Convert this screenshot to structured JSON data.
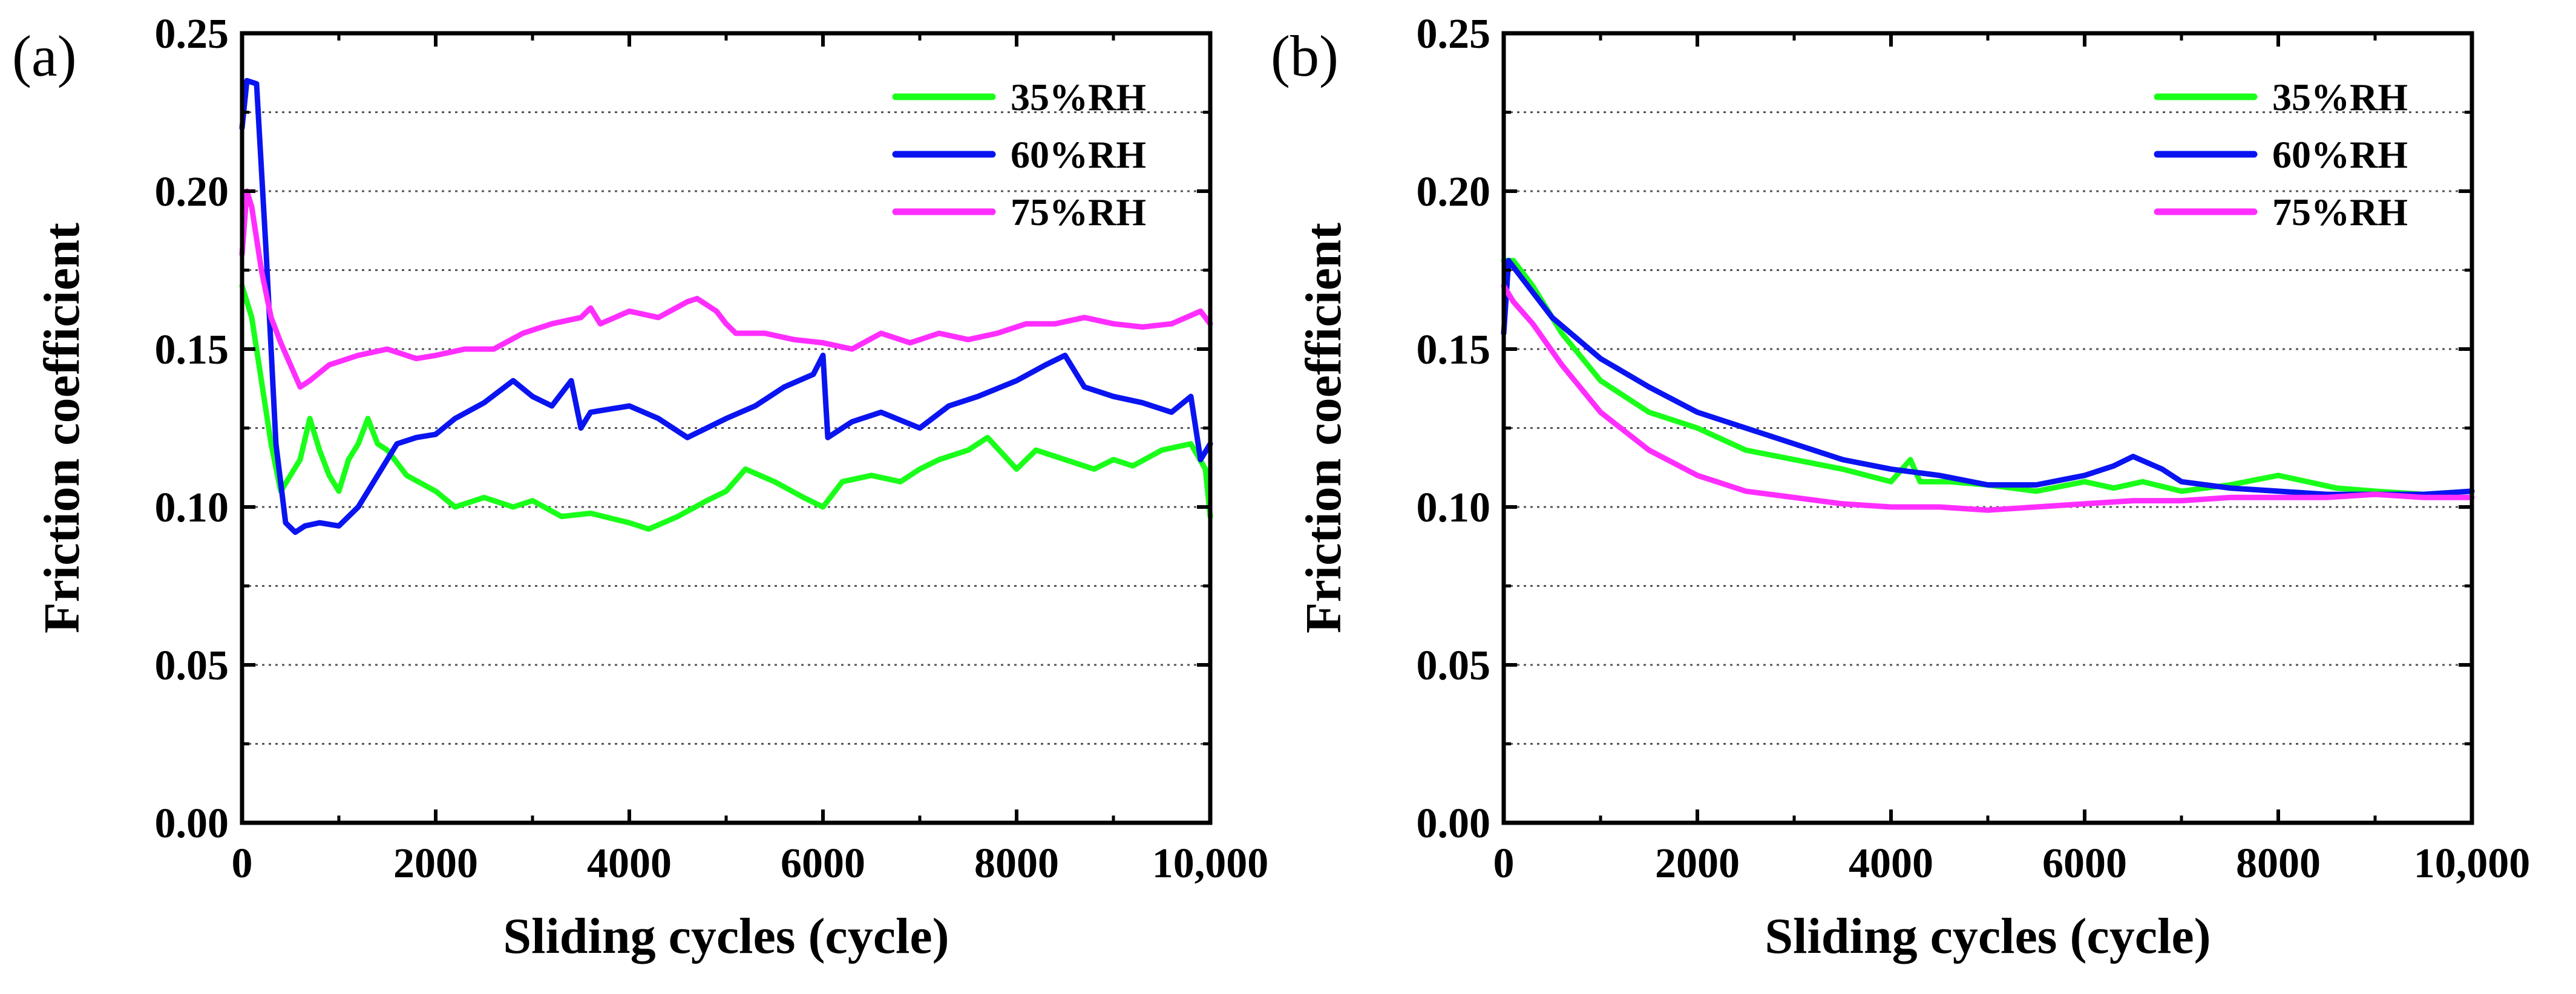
{
  "chart_data": [
    {
      "type": "line",
      "panel_label": "(a)",
      "xlabel": "Sliding cycles (cycle)",
      "ylabel": "Friction coefficient",
      "xlim": [
        0,
        10000
      ],
      "ylim": [
        0,
        0.25
      ],
      "xticks": [
        "0",
        "2000",
        "4000",
        "6000",
        "8000",
        "10,000"
      ],
      "xtick_values": [
        0,
        2000,
        4000,
        6000,
        8000,
        10000
      ],
      "yticks": [
        "0.00",
        "0.05",
        "0.10",
        "0.15",
        "0.20",
        "0.25"
      ],
      "ytick_values": [
        0,
        0.05,
        0.1,
        0.15,
        0.2,
        0.25
      ],
      "grid": "horizontal-dotted",
      "legend_position": "top-right",
      "series": [
        {
          "name": "35%RH",
          "color": "#1aff1a",
          "x": [
            0,
            100,
            200,
            300,
            400,
            500,
            600,
            700,
            800,
            900,
            1000,
            1100,
            1200,
            1300,
            1400,
            1500,
            1700,
            2000,
            2200,
            2500,
            2800,
            3000,
            3300,
            3600,
            4000,
            4200,
            4500,
            4800,
            5000,
            5200,
            5500,
            5800,
            6000,
            6200,
            6500,
            6800,
            7000,
            7200,
            7500,
            7700,
            8000,
            8200,
            8500,
            8800,
            9000,
            9200,
            9500,
            9800,
            9950,
            10000
          ],
          "y": [
            0.17,
            0.16,
            0.14,
            0.12,
            0.105,
            0.11,
            0.115,
            0.128,
            0.118,
            0.11,
            0.105,
            0.115,
            0.12,
            0.128,
            0.12,
            0.118,
            0.11,
            0.105,
            0.1,
            0.103,
            0.1,
            0.102,
            0.097,
            0.098,
            0.095,
            0.093,
            0.097,
            0.102,
            0.105,
            0.112,
            0.108,
            0.103,
            0.1,
            0.108,
            0.11,
            0.108,
            0.112,
            0.115,
            0.118,
            0.122,
            0.112,
            0.118,
            0.115,
            0.112,
            0.115,
            0.113,
            0.118,
            0.12,
            0.112,
            0.097
          ]
        },
        {
          "name": "60%RH",
          "color": "#0a14f0",
          "x": [
            0,
            50,
            150,
            250,
            350,
            450,
            550,
            650,
            800,
            1000,
            1200,
            1400,
            1600,
            1800,
            2000,
            2200,
            2500,
            2800,
            3000,
            3200,
            3400,
            3500,
            3600,
            4000,
            4300,
            4600,
            5000,
            5300,
            5600,
            5900,
            6000,
            6050,
            6300,
            6600,
            7000,
            7300,
            7600,
            8000,
            8300,
            8500,
            8700,
            9000,
            9300,
            9600,
            9800,
            9900,
            10000
          ],
          "y": [
            0.22,
            0.235,
            0.234,
            0.18,
            0.12,
            0.095,
            0.092,
            0.094,
            0.095,
            0.094,
            0.1,
            0.11,
            0.12,
            0.122,
            0.123,
            0.128,
            0.133,
            0.14,
            0.135,
            0.132,
            0.14,
            0.125,
            0.13,
            0.132,
            0.128,
            0.122,
            0.128,
            0.132,
            0.138,
            0.142,
            0.148,
            0.122,
            0.127,
            0.13,
            0.125,
            0.132,
            0.135,
            0.14,
            0.145,
            0.148,
            0.138,
            0.135,
            0.133,
            0.13,
            0.135,
            0.115,
            0.12
          ]
        },
        {
          "name": "75%RH",
          "color": "#ff2eff",
          "x": [
            0,
            50,
            100,
            200,
            300,
            400,
            500,
            600,
            700,
            900,
            1200,
            1500,
            1800,
            2000,
            2300,
            2600,
            2900,
            3200,
            3500,
            3600,
            3700,
            4000,
            4300,
            4600,
            4700,
            4900,
            5000,
            5100,
            5400,
            5700,
            6000,
            6300,
            6600,
            6900,
            7200,
            7500,
            7800,
            8100,
            8400,
            8700,
            9000,
            9300,
            9600,
            9900,
            10000
          ],
          "y": [
            0.18,
            0.2,
            0.195,
            0.175,
            0.16,
            0.152,
            0.145,
            0.138,
            0.14,
            0.145,
            0.148,
            0.15,
            0.147,
            0.148,
            0.15,
            0.15,
            0.155,
            0.158,
            0.16,
            0.163,
            0.158,
            0.162,
            0.16,
            0.165,
            0.166,
            0.162,
            0.158,
            0.155,
            0.155,
            0.153,
            0.152,
            0.15,
            0.155,
            0.152,
            0.155,
            0.153,
            0.155,
            0.158,
            0.158,
            0.16,
            0.158,
            0.157,
            0.158,
            0.162,
            0.158
          ]
        }
      ]
    },
    {
      "type": "line",
      "panel_label": "(b)",
      "xlabel": "Sliding cycles (cycle)",
      "ylabel": "Friction coefficient",
      "xlim": [
        0,
        10000
      ],
      "ylim": [
        0,
        0.25
      ],
      "xticks": [
        "0",
        "2000",
        "4000",
        "6000",
        "8000",
        "10,000"
      ],
      "xtick_values": [
        0,
        2000,
        4000,
        6000,
        8000,
        10000
      ],
      "yticks": [
        "0.00",
        "0.05",
        "0.10",
        "0.15",
        "0.20",
        "0.25"
      ],
      "ytick_values": [
        0,
        0.05,
        0.1,
        0.15,
        0.2,
        0.25
      ],
      "grid": "horizontal-dotted",
      "legend_position": "top-right",
      "series": [
        {
          "name": "35%RH",
          "color": "#1aff1a",
          "x": [
            0,
            100,
            300,
            600,
            1000,
            1500,
            2000,
            2500,
            3000,
            3500,
            4000,
            4200,
            4300,
            4600,
            5000,
            5500,
            6000,
            6300,
            6600,
            7000,
            7500,
            8000,
            8300,
            8600,
            9000,
            9500,
            10000
          ],
          "y": [
            0.178,
            0.178,
            0.17,
            0.155,
            0.14,
            0.13,
            0.125,
            0.118,
            0.115,
            0.112,
            0.108,
            0.115,
            0.108,
            0.108,
            0.107,
            0.105,
            0.108,
            0.106,
            0.108,
            0.105,
            0.107,
            0.11,
            0.108,
            0.106,
            0.105,
            0.104,
            0.105
          ]
        },
        {
          "name": "60%RH",
          "color": "#0a14f0",
          "x": [
            0,
            50,
            200,
            500,
            1000,
            1500,
            2000,
            2500,
            3000,
            3500,
            4000,
            4500,
            5000,
            5500,
            6000,
            6300,
            6500,
            6800,
            7000,
            7500,
            8000,
            8500,
            9000,
            9500,
            10000
          ],
          "y": [
            0.155,
            0.178,
            0.172,
            0.16,
            0.147,
            0.138,
            0.13,
            0.125,
            0.12,
            0.115,
            0.112,
            0.11,
            0.107,
            0.107,
            0.11,
            0.113,
            0.116,
            0.112,
            0.108,
            0.106,
            0.105,
            0.104,
            0.104,
            0.104,
            0.105
          ]
        },
        {
          "name": "75%RH",
          "color": "#ff2eff",
          "x": [
            0,
            100,
            300,
            600,
            1000,
            1500,
            2000,
            2500,
            3000,
            3500,
            4000,
            4500,
            5000,
            5500,
            6000,
            6500,
            7000,
            7500,
            8000,
            8500,
            9000,
            9500,
            10000
          ],
          "y": [
            0.17,
            0.165,
            0.158,
            0.145,
            0.13,
            0.118,
            0.11,
            0.105,
            0.103,
            0.101,
            0.1,
            0.1,
            0.099,
            0.1,
            0.101,
            0.102,
            0.102,
            0.103,
            0.103,
            0.103,
            0.104,
            0.103,
            0.103
          ]
        }
      ]
    }
  ]
}
